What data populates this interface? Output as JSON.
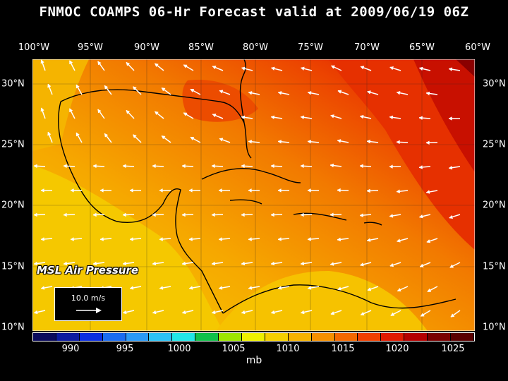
{
  "title": "FNMOC COAMPS 06-Hr Forecast valid at 2009/06/19 06Z",
  "longitude_labels": [
    "100°W",
    "95°W",
    "90°W",
    "85°W",
    "80°W",
    "75°W",
    "70°W",
    "65°W",
    "60°W"
  ],
  "latitude_labels": [
    "30°N",
    "25°N",
    "20°N",
    "15°N",
    "10°N"
  ],
  "field_label": "MSL Air Pressure",
  "scale_vector": {
    "label": "10.0 m/s"
  },
  "colorbar": {
    "colors": [
      "#0a0a5c",
      "#0b1aa0",
      "#0a2ee0",
      "#1a6cf0",
      "#2a9af6",
      "#2cc2f5",
      "#22e6e6",
      "#10c04a",
      "#9ee600",
      "#eef000",
      "#f5d000",
      "#f6b200",
      "#f59000",
      "#f46800",
      "#f04000",
      "#e01a00",
      "#b40000",
      "#7a0000",
      "#5a0000"
    ],
    "tick_labels": [
      "990",
      "995",
      "1000",
      "1005",
      "1010",
      "1015",
      "1020",
      "1025"
    ],
    "units": "mb"
  }
}
